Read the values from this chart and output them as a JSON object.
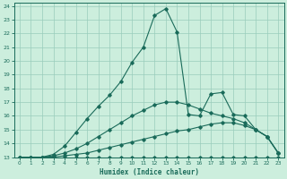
{
  "xlabel": "Humidex (Indice chaleur)",
  "bg_color": "#cceedd",
  "line_color": "#1a6b5a",
  "grid_color": "#99ccbb",
  "xlim": [
    -0.5,
    23.5
  ],
  "ylim": [
    13,
    24.2
  ],
  "xticks": [
    0,
    1,
    2,
    3,
    4,
    5,
    6,
    7,
    8,
    9,
    10,
    11,
    12,
    13,
    14,
    15,
    16,
    17,
    18,
    19,
    20,
    21,
    22,
    23
  ],
  "yticks": [
    13,
    14,
    15,
    16,
    17,
    18,
    19,
    20,
    21,
    22,
    23,
    24
  ],
  "line1_x": [
    0,
    1,
    2,
    3,
    4,
    5,
    6,
    7,
    8,
    9,
    10,
    11,
    12,
    13,
    14,
    15,
    16,
    17,
    18,
    19,
    20,
    21,
    22,
    23
  ],
  "line1_y": [
    13,
    13,
    13,
    13,
    13,
    13,
    13,
    13,
    13,
    13,
    13,
    13,
    13,
    13,
    13,
    13,
    13,
    13,
    13,
    13,
    13,
    13,
    13,
    13
  ],
  "line2_x": [
    0,
    1,
    2,
    3,
    4,
    5,
    6,
    7,
    8,
    9,
    10,
    11,
    12,
    13,
    14,
    15,
    16,
    17,
    18,
    19,
    20,
    21,
    22,
    23
  ],
  "line2_y": [
    13,
    13,
    13,
    13,
    13.1,
    13.2,
    13.3,
    13.5,
    13.7,
    13.9,
    14.1,
    14.3,
    14.5,
    14.7,
    14.9,
    15.0,
    15.2,
    15.4,
    15.5,
    15.5,
    15.3,
    15.0,
    14.5,
    13.3
  ],
  "line3_x": [
    0,
    1,
    2,
    3,
    4,
    5,
    6,
    7,
    8,
    9,
    10,
    11,
    12,
    13,
    14,
    15,
    16,
    17,
    18,
    19,
    20,
    21,
    22,
    23
  ],
  "line3_y": [
    13,
    13,
    13,
    13.1,
    13.3,
    13.6,
    14.0,
    14.5,
    15.0,
    15.5,
    16.0,
    16.4,
    16.8,
    17.0,
    17.0,
    16.8,
    16.5,
    16.2,
    16.0,
    15.8,
    15.5,
    15.0,
    14.5,
    13.3
  ],
  "line4_x": [
    0,
    1,
    2,
    3,
    4,
    5,
    6,
    7,
    8,
    9,
    10,
    11,
    12,
    13,
    14,
    15,
    16,
    17,
    18,
    19,
    20,
    21,
    22,
    23
  ],
  "line4_y": [
    13,
    13,
    13,
    13.2,
    13.8,
    14.8,
    15.8,
    16.7,
    17.5,
    18.5,
    19.9,
    21.0,
    23.3,
    23.8,
    22.1,
    16.1,
    16.0,
    17.6,
    17.7,
    16.1,
    16.0,
    15.0,
    14.5,
    13.3
  ]
}
